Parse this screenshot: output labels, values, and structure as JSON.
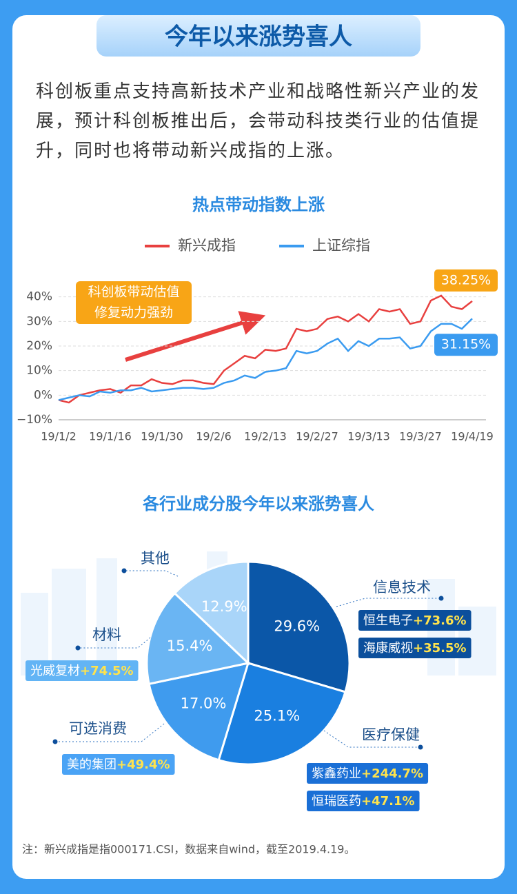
{
  "header": {
    "title": "今年以来涨势喜人"
  },
  "intro": "科创板重点支持高新技术产业和战略性新兴产业的发展，预计科创板推出后，会带动科技类行业的估值提升，同时也将带动新兴成指的上涨。",
  "chart_data": [
    {
      "type": "line",
      "title": "热点带动指数上涨",
      "categories": [
        "19/1/2",
        null,
        null,
        null,
        null,
        "19/1/16",
        null,
        null,
        null,
        null,
        "19/1/30",
        null,
        null,
        null,
        null,
        "19/2/6",
        null,
        null,
        null,
        null,
        "19/2/13",
        null,
        null,
        null,
        null,
        "19/2/27",
        null,
        null,
        null,
        null,
        "19/3/13",
        null,
        null,
        null,
        null,
        "19/3/27",
        null,
        null,
        null,
        null,
        "19/4/19"
      ],
      "series": [
        {
          "name": "新兴成指",
          "color": "#e8403f",
          "values": [
            -2,
            -3,
            0,
            1,
            2,
            2.5,
            1,
            4,
            4,
            6.5,
            5,
            4.5,
            6,
            6,
            5,
            4.5,
            10,
            13,
            16,
            15,
            18.5,
            18,
            19,
            27,
            26,
            27,
            31,
            32,
            30,
            33,
            30,
            35,
            34,
            35,
            29,
            30,
            38.5,
            40.5,
            36,
            35,
            38.25
          ],
          "value_labels": [
            null,
            null,
            null,
            null,
            null,
            null,
            null,
            null,
            null,
            null,
            null,
            null,
            null,
            null,
            null,
            null,
            null,
            null,
            null,
            null,
            null,
            null,
            null,
            null,
            null,
            null,
            null,
            null,
            null,
            null,
            null,
            null,
            null,
            null,
            null,
            null,
            null,
            null,
            null,
            null,
            "38.25%"
          ]
        },
        {
          "name": "上证综指",
          "color": "#3a9bf0",
          "values": [
            -2,
            -1,
            0,
            -0.5,
            1.5,
            1,
            2,
            2,
            3,
            1.5,
            2,
            2.5,
            3,
            3,
            2.5,
            3,
            5,
            6,
            8,
            7,
            9.5,
            10,
            11,
            18,
            17,
            18,
            21,
            23,
            18,
            22,
            20,
            23,
            23,
            23.5,
            19,
            20,
            26,
            29,
            29,
            27,
            31.15
          ],
          "value_labels": [
            null,
            null,
            null,
            null,
            null,
            null,
            null,
            null,
            null,
            null,
            null,
            null,
            null,
            null,
            null,
            null,
            null,
            null,
            null,
            null,
            null,
            null,
            null,
            null,
            null,
            null,
            null,
            null,
            null,
            null,
            null,
            null,
            null,
            null,
            null,
            null,
            null,
            null,
            null,
            null,
            "31.15%"
          ]
        }
      ],
      "ylim": [
        -10,
        50
      ],
      "yticks": [
        {
          "value": -10,
          "label": "−10%"
        },
        {
          "value": 0,
          "label": "0%"
        },
        {
          "value": 10,
          "label": "10%"
        },
        {
          "value": 20,
          "label": "20%"
        },
        {
          "value": 30,
          "label": "30%"
        },
        {
          "value": 40,
          "label": "40%"
        }
      ],
      "grid": true,
      "legend": "top",
      "annotation": [
        "科创板带动估值",
        "修复动力强劲"
      ]
    },
    {
      "type": "pie",
      "title": "各行业成分股今年以来涨势喜人",
      "categories": [
        "信息技术",
        "医疗保健",
        "可选消费",
        "材料",
        "其他"
      ],
      "values": [
        29.6,
        25.1,
        17.0,
        15.4,
        12.9
      ],
      "value_labels": [
        "29.6%",
        "25.1%",
        "17.0%",
        "15.4%",
        "12.9%"
      ],
      "colors": [
        "#0b57a8",
        "#1a7fe0",
        "#3f9bee",
        "#6ab5f3",
        "#a9d5f9"
      ],
      "stocks": [
        [
          {
            "name": "恒生电子",
            "change": "+73.6%"
          },
          {
            "name": "海康威视",
            "change": "+35.5%"
          }
        ],
        [
          {
            "name": "紫鑫药业",
            "change": "+244.7%"
          },
          {
            "name": "恒瑞医药",
            "change": "+47.1%"
          }
        ],
        [
          {
            "name": "美的集团",
            "change": "+49.4%"
          }
        ],
        [
          {
            "name": "光威复材",
            "change": "+74.5%"
          }
        ],
        []
      ]
    }
  ],
  "note": "注：新兴成指是指000171.CSI，数据来自wind，截至2019.4.19。"
}
